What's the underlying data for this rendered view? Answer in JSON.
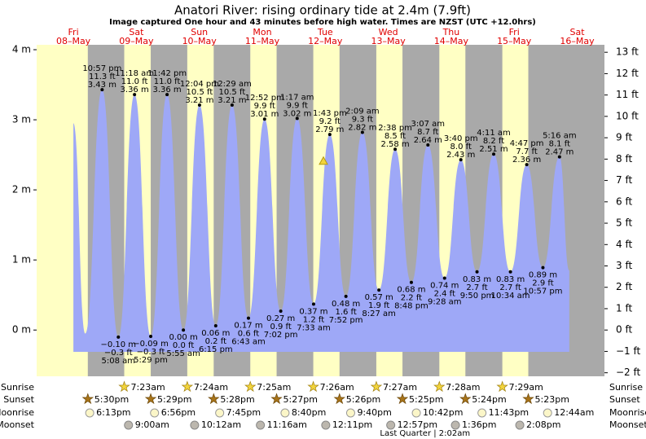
{
  "chart_data": {
    "type": "area",
    "title": "Anatori River: rising  ordinary tide at 2.4m (7.9ft)",
    "subtitle": "Image captured One hour and 43 minutes before high water. Times are NZST (UTC +12.0hrs)",
    "days": [
      {
        "name": "Fri",
        "date": "08–May"
      },
      {
        "name": "Sat",
        "date": "09–May"
      },
      {
        "name": "Sun",
        "date": "10–May"
      },
      {
        "name": "Mon",
        "date": "11–May"
      },
      {
        "name": "Tue",
        "date": "12–May"
      },
      {
        "name": "Wed",
        "date": "13–May"
      },
      {
        "name": "Thu",
        "date": "14–May"
      },
      {
        "name": "Fri",
        "date": "15–May"
      },
      {
        "name": "Sat",
        "date": "16–May"
      }
    ],
    "color": "#9ea8f7",
    "xlim": [
      -2,
      214.4
    ],
    "ylim": [
      -0.66,
      4.07
    ],
    "y2lim": [
      -2.165,
      13.35
    ],
    "yticks": [
      {
        "value": 4,
        "label": "4 m"
      },
      {
        "value": 3,
        "label": "3 m"
      },
      {
        "value": 2,
        "label": "2 m"
      },
      {
        "value": 1,
        "label": "1 m"
      },
      {
        "value": 0,
        "label": "0 m"
      }
    ],
    "y2ticks": [
      {
        "value": 13,
        "label": "13 ft"
      },
      {
        "value": 12,
        "label": "12 ft"
      },
      {
        "value": 11,
        "label": "11 ft"
      },
      {
        "value": 10,
        "label": "10 ft"
      },
      {
        "value": 9,
        "label": "9 ft"
      },
      {
        "value": 8,
        "label": "8 ft"
      },
      {
        "value": 7,
        "label": "7 ft"
      },
      {
        "value": 6,
        "label": "6 ft"
      },
      {
        "value": 5,
        "label": "5 ft"
      },
      {
        "value": 4,
        "label": "4 ft"
      },
      {
        "value": 3,
        "label": "3 ft"
      },
      {
        "value": 2,
        "label": "2 ft"
      },
      {
        "value": 1,
        "label": "1 ft"
      },
      {
        "value": 0,
        "label": "0 ft"
      },
      {
        "value": -1,
        "label": "−1 ft"
      },
      {
        "value": -2,
        "label": "−2 ft"
      }
    ],
    "x": [
      12,
      16.5,
      22.95,
      29.13,
      35.3,
      41.48,
      47.7,
      53.92,
      60.07,
      66.25,
      72.48,
      78.72,
      84.87,
      91.03,
      97.28,
      103.55,
      109.72,
      115.87,
      122.15,
      128.45,
      134.63,
      140.8,
      147.12,
      153.47,
      159.67,
      165.83,
      172.18,
      178.57,
      184.78,
      190.95,
      197.27,
      201
    ],
    "values": [
      2.95,
      -0.05,
      3.43,
      -0.1,
      3.36,
      -0.09,
      3.36,
      0.0,
      3.21,
      0.06,
      3.21,
      0.17,
      3.01,
      0.27,
      3.02,
      0.37,
      2.79,
      0.48,
      2.82,
      0.57,
      2.58,
      0.68,
      2.64,
      0.74,
      2.43,
      0.83,
      2.51,
      0.83,
      2.36,
      0.89,
      2.47,
      0.85
    ],
    "value_labels": [
      null,
      null,
      "3.43 m",
      "−0.10 m",
      "3.36 m",
      "−0.09 m",
      "3.36 m",
      "0.00 m",
      "3.21 m",
      "0.06 m",
      "3.21 m",
      "0.17 m",
      "3.01 m",
      "0.27 m",
      "3.02 m",
      "0.37 m",
      "2.79 m",
      "0.48 m",
      "2.82 m",
      "0.57 m",
      "2.58 m",
      "0.68 m",
      "2.64 m",
      "0.74 m",
      "2.43 m",
      "0.83 m",
      "2.51 m",
      "0.83 m",
      "2.36 m",
      "0.89 m",
      "2.47 m",
      null
    ],
    "ft_labels": [
      null,
      null,
      "11.3 ft",
      "−0.3 ft",
      "11.0 ft",
      "−0.3 ft",
      "11.0 ft",
      "0.0 ft",
      "10.5 ft",
      "0.2 ft",
      "10.5 ft",
      "0.6 ft",
      "9.9 ft",
      "0.9 ft",
      "9.9 ft",
      "1.2 ft",
      "9.2 ft",
      "1.6 ft",
      "9.3 ft",
      "1.9 ft",
      "8.5 ft",
      "2.2 ft",
      "8.7 ft",
      "2.4 ft",
      "8.0 ft",
      "2.7 ft",
      "8.2 ft",
      "2.7 ft",
      "7.7 ft",
      "2.9 ft",
      "8.1 ft",
      null
    ],
    "time_labels": [
      null,
      null,
      "10:57 pm",
      "5:08 am",
      "11:18 am",
      "5:29 pm",
      "11:42 pm",
      "5:55 am",
      "12:04 pm",
      "6:15 pm",
      "12:29 am",
      "6:43 am",
      "12:52 pm",
      "7:02 pm",
      "1:17 am",
      "7:33 am",
      "1:43 pm",
      "7:52 pm",
      "2:09 am",
      "8:27 am",
      "2:38 pm",
      "8:48 pm",
      "3:07 am",
      "9:28 am",
      "3:40 pm",
      "9:50 pm",
      "4:11 am",
      "10:34 am",
      "4:47 pm",
      "10:57 pm",
      "5:16 am",
      null
    ],
    "current": {
      "x": 107.3,
      "value": 2.4
    },
    "almanac": [
      {
        "label": "Sunrise",
        "x": [
          31.38,
          55.4,
          79.42,
          103.43,
          127.45,
          151.47,
          175.48
        ],
        "times": [
          "7:23am",
          "7:24am",
          "7:25am",
          "7:26am",
          "7:27am",
          "7:28am",
          "7:29am"
        ]
      },
      {
        "label": "Sunset",
        "x": [
          17.5,
          41.48,
          65.47,
          89.45,
          113.43,
          137.42,
          161.4,
          185.38
        ],
        "times": [
          "5:30pm",
          "5:29pm",
          "5:28pm",
          "5:27pm",
          "5:26pm",
          "5:25pm",
          "5:24pm",
          "5:23pm"
        ]
      },
      {
        "label": "Moonrise",
        "x": [
          18.22,
          42.93,
          67.75,
          92.67,
          117.67,
          142.7,
          167.72,
          192.73
        ],
        "times": [
          "6:13pm",
          "6:56pm",
          "7:45pm",
          "8:40pm",
          "9:40pm",
          "10:42pm",
          "11:43pm",
          "12:44am"
        ]
      },
      {
        "label": "Moonset",
        "x": [
          33,
          58.2,
          83.27,
          108.18,
          132.95,
          157.6,
          182.13
        ],
        "times": [
          "9:00am",
          "10:12am",
          "11:16am",
          "12:11pm",
          "12:57pm",
          "1:36pm",
          "2:08pm"
        ]
      }
    ],
    "moon_phase": {
      "x": 146.03,
      "label": "Last Quarter | 2:02am"
    }
  }
}
